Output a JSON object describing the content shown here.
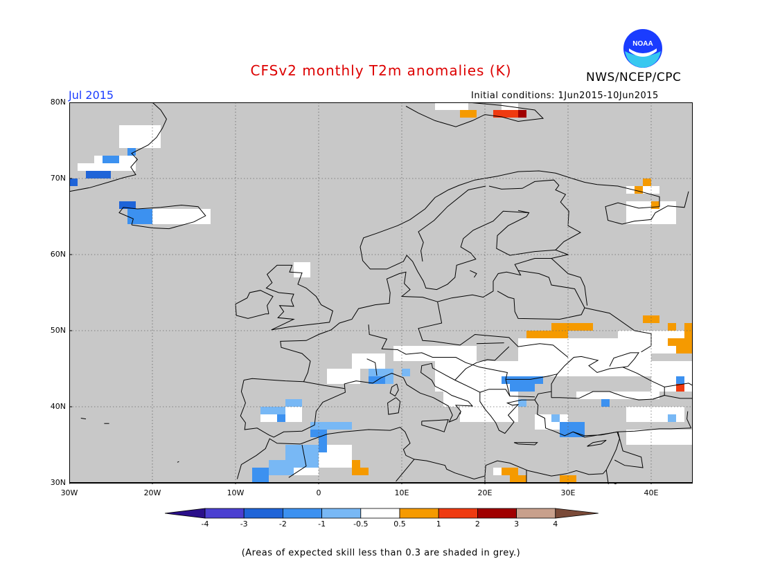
{
  "title": "CFSv2 monthly T2m anomalies (K)",
  "agency": "NWS/NCEP/CPC",
  "logo_text": "NOAA",
  "period": "Jul 2015",
  "initial_conditions": "Initial conditions: 1Jun2015-10Jun2015",
  "footnote": "(Areas of expected skill less than 0.3 are shaded in grey.)",
  "colors": {
    "no_skill": "#c8c8c8",
    "land_line": "#000000",
    "lt_minus4": "#2a0f8a",
    "m4_m3": "#4b3fd1",
    "m3_m2": "#1f64d8",
    "m2_m1": "#3c91f0",
    "m1_m05": "#78b8f5",
    "m05_05": "#ffffff",
    "p05_1": "#f59a00",
    "p1_2": "#ef3a10",
    "p2_3": "#a00000",
    "p3_4": "#c8a08c",
    "gt4": "#7a4a38"
  },
  "map": {
    "lon_range": [
      -30,
      45
    ],
    "lat_range": [
      30,
      80
    ],
    "lon_labels": [
      "30W",
      "20W",
      "10W",
      "0",
      "10E",
      "20E",
      "30E",
      "40E"
    ],
    "lat_labels": [
      "80N",
      "70N",
      "60N",
      "50N",
      "40N",
      "30N"
    ]
  },
  "colorbar": {
    "ticks": [
      "-4",
      "-3",
      "-2",
      "-1",
      "-0.5",
      "0.5",
      "1",
      "2",
      "3",
      "4"
    ],
    "bins": [
      "m4_m3",
      "m3_m2",
      "m2_m1",
      "m1_m05",
      "m05_05",
      "p05_1",
      "p1_2",
      "p2_3",
      "p3_4"
    ]
  }
}
